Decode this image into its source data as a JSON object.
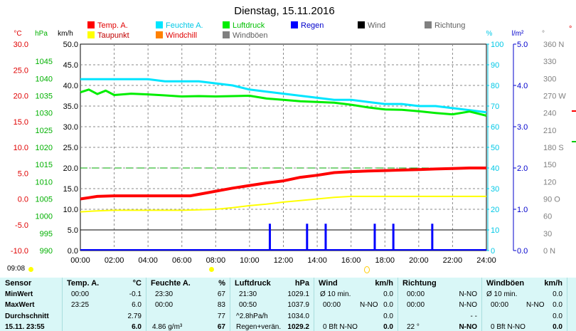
{
  "title": "Dienstag, 15.11.2016",
  "colors": {
    "temp": "#ff0000",
    "feuchte": "#00e5ff",
    "luftdruck": "#00ee00",
    "taupunkt": "#ffff00",
    "windchill": "#ff8000",
    "regen": "#0000ff",
    "wind": "#000000",
    "richtung": "#808080",
    "windboeen": "#808080",
    "sealevel": "#00aa00"
  },
  "legend": [
    {
      "key": "temp",
      "label": "Temp. A."
    },
    {
      "key": "taupunkt",
      "label": "Taupunkt"
    },
    {
      "key": "feuchte",
      "label": "Feuchte A."
    },
    {
      "key": "windchill",
      "label": "Windchill"
    },
    {
      "key": "luftdruck",
      "label": "Luftdruck"
    },
    {
      "key": "windboeen",
      "label": "Windböen"
    },
    {
      "key": "regen",
      "label": "Regen"
    },
    {
      "key": "wind",
      "label": "Wind"
    },
    {
      "key": "richtung",
      "label": "Richtung"
    }
  ],
  "axis_units": {
    "temp": "°C",
    "pressure": "hPa",
    "wind": "km/h",
    "humidity": "%",
    "rain": "l/m²",
    "direction": "°"
  },
  "chart_data": {
    "type": "line",
    "title": "Dienstag, 15.11.2016",
    "x_ticks": [
      "00:00",
      "02:00",
      "04:00",
      "06:00",
      "08:00",
      "10:00",
      "12:00",
      "14:00",
      "16:00",
      "18:00",
      "20:00",
      "22:00",
      "24:00"
    ],
    "axes": {
      "temp": {
        "unit": "°C",
        "ticks": [
          "30.0",
          "25.0",
          "20.0",
          "15.0",
          "10.0",
          "5.0",
          "0.0",
          "-5.0",
          "-10.0"
        ],
        "range": [
          -10,
          30
        ]
      },
      "pressure": {
        "unit": "hPa",
        "ticks": [
          "1045",
          "1040",
          "1035",
          "1030",
          "1025",
          "1020",
          "1015",
          "1010",
          "1005",
          "1000",
          "995",
          "990"
        ],
        "range": [
          990,
          1050
        ]
      },
      "wind": {
        "unit": "km/h",
        "ticks": [
          "50.0",
          "45.0",
          "40.0",
          "35.0",
          "30.0",
          "25.0",
          "20.0",
          "15.0",
          "10.0",
          "5.0",
          "0.0"
        ],
        "range": [
          0,
          50
        ]
      },
      "humidity": {
        "unit": "%",
        "ticks": [
          "100",
          "90",
          "80",
          "70",
          "60",
          "50",
          "40",
          "30",
          "20",
          "10",
          "0"
        ],
        "range": [
          0,
          100
        ]
      },
      "rain": {
        "unit": "l/m²",
        "ticks": [
          "5.0",
          "4.0",
          "3.0",
          "2.0",
          "1.0",
          "0.0"
        ],
        "range": [
          0,
          5
        ]
      },
      "direction": {
        "unit": "°",
        "ticks": [
          "360 N",
          "330",
          "300",
          "270 W",
          "240",
          "210",
          "180 S",
          "150",
          "120",
          "90 O",
          "60",
          "30",
          "0 N"
        ],
        "range": [
          0,
          360
        ]
      }
    },
    "series": [
      {
        "name": "Temp. A.",
        "axis": "temp",
        "x": [
          0,
          1,
          2,
          3,
          4,
          5,
          6,
          6.5,
          7,
          8,
          9,
          10,
          11,
          12,
          13,
          14,
          15,
          16,
          17,
          18,
          19,
          20,
          21,
          22,
          23,
          23.5,
          24
        ],
        "y": [
          0.0,
          0.5,
          0.6,
          0.6,
          0.6,
          0.6,
          0.6,
          0.6,
          0.9,
          1.5,
          2.1,
          2.6,
          3.1,
          3.5,
          4.2,
          4.6,
          5.1,
          5.3,
          5.4,
          5.5,
          5.6,
          5.7,
          5.8,
          5.9,
          6.0,
          6.0,
          6.0
        ]
      },
      {
        "name": "Taupunkt",
        "axis": "temp",
        "x": [
          0,
          1,
          2,
          3,
          4,
          5,
          6,
          7,
          8,
          9,
          10,
          11,
          12,
          13,
          14,
          15,
          16,
          17,
          18,
          19,
          20,
          21,
          22,
          23,
          24
        ],
        "y": [
          -2.5,
          -2.3,
          -2.2,
          -2.2,
          -2.2,
          -2.2,
          -2.2,
          -2.1,
          -2.0,
          -1.7,
          -1.3,
          -1.0,
          -0.6,
          -0.3,
          0.0,
          0.3,
          0.5,
          0.5,
          0.5,
          0.5,
          0.5,
          0.5,
          0.5,
          0.5,
          0.5
        ]
      },
      {
        "name": "Feuchte A.",
        "axis": "humidity",
        "x": [
          0,
          1,
          2,
          3,
          4,
          5,
          6,
          7,
          8,
          9,
          10,
          11,
          12,
          13,
          14,
          15,
          16,
          17,
          18,
          19,
          20,
          21,
          22,
          23,
          24
        ],
        "y": [
          83,
          83,
          83,
          83,
          83,
          82,
          82,
          82,
          81,
          80,
          78,
          77,
          76,
          75,
          74,
          73,
          73,
          72,
          71,
          71,
          70,
          70,
          69,
          68,
          67
        ]
      },
      {
        "name": "Luftdruck",
        "axis": "pressure",
        "x": [
          0,
          0.5,
          1,
          1.5,
          2,
          3,
          4,
          5,
          6,
          7,
          8,
          9,
          10,
          11,
          12,
          13,
          14,
          15,
          16,
          17,
          18,
          19,
          20,
          21,
          22,
          23,
          23.5,
          24
        ],
        "y": [
          1036.0,
          1036.8,
          1035.5,
          1036.5,
          1035.2,
          1035.6,
          1035.4,
          1035.1,
          1034.8,
          1034.9,
          1034.8,
          1034.9,
          1035.0,
          1034.2,
          1033.8,
          1033.4,
          1033.2,
          1033.0,
          1032.4,
          1031.6,
          1031.0,
          1030.9,
          1030.5,
          1030.0,
          1029.6,
          1030.4,
          1029.8,
          1029.2
        ]
      }
    ],
    "rain": {
      "name": "Regen",
      "axis": "rain",
      "x": [
        11.2,
        13.4,
        14.5,
        17.4,
        18.5,
        20.8
      ],
      "y": [
        0.65,
        0.65,
        0.65,
        0.65,
        0.65,
        0.65
      ]
    },
    "sealevel_ref": {
      "axis": "pressure",
      "value": 1014
    }
  },
  "timebar": {
    "time_label": "09:08"
  },
  "stats": {
    "row_labels": [
      "Sensor",
      "MinWert",
      "MaxWert",
      "Durchschnitt",
      "15.11. 23:55"
    ],
    "temp": {
      "header": "Temp. A.",
      "unit": "°C",
      "min_time": "00:00",
      "min": "-0.1",
      "max_time": "23:25",
      "max": "6.0",
      "avg": "2.79",
      "current": "6.0"
    },
    "feuchte": {
      "header": "Feuchte A.",
      "unit": "%",
      "min_time": "23:30",
      "min": "67",
      "max_time": "00:00",
      "max": "83",
      "avg": "77",
      "current_extra": "4.86 g/m³",
      "current": "67"
    },
    "luftdruck": {
      "header": "Luftdruck",
      "unit": "hPa",
      "min_time": "21:30",
      "min": "1029.1",
      "max_time": "00:50",
      "max": "1037.9",
      "avg_label": "^2.8hPa/h",
      "avg": "1034.0",
      "current_label": "Regen+verän.",
      "current": "1029.2"
    },
    "wind": {
      "header": "Wind",
      "unit": "km/h",
      "min_time": "Ø 10 min.",
      "min": "0.0",
      "max_time": "00:00",
      "max_dir": "N-NO",
      "max": "0.0",
      "avg": "0.0",
      "current_bft": "0 Bft N-NO",
      "current": "0.0"
    },
    "richtung": {
      "header": "Richtung",
      "min_time": "00:00",
      "min": "N-NO",
      "max_time": "00:00",
      "max": "N-NO",
      "avg": "- -",
      "current_deg": "22 °",
      "current": "N-NO"
    },
    "windboeen": {
      "header": "Windböen",
      "unit": "km/h",
      "min_time": "Ø 10 min.",
      "min": "0.0",
      "max_time": "00:00",
      "max_dir": "N-NO",
      "max": "0.0",
      "avg": "0.0",
      "current_bft": "0 Bft N-NO",
      "current": "0.0"
    }
  }
}
